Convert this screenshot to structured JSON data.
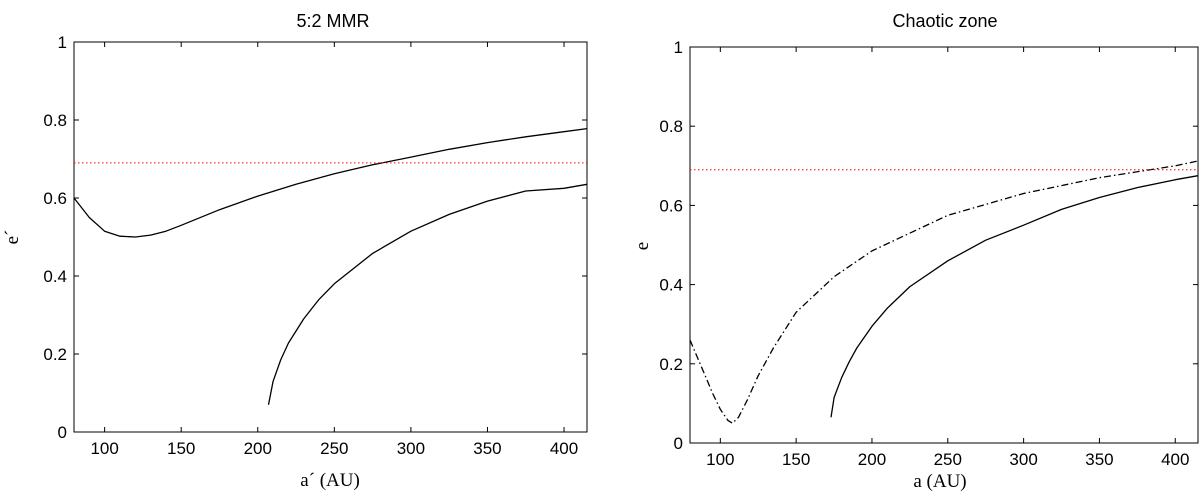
{
  "chart_data": [
    {
      "type": "line",
      "title": "5:2 MMR",
      "xlabel": "a´ (AU)",
      "ylabel": "e´",
      "xlim": [
        80,
        415
      ],
      "ylim": [
        0,
        1
      ],
      "xticks": [
        100,
        150,
        200,
        250,
        300,
        350,
        400
      ],
      "yticks": [
        0,
        0.2,
        0.4,
        0.6,
        0.8,
        1
      ],
      "xtick_labels": [
        "100",
        "150",
        "200",
        "250",
        "300",
        "350",
        "400"
      ],
      "ytick_labels": [
        "0",
        "0.2",
        "0.4",
        "0.6",
        "0.8",
        "1"
      ],
      "grid": false,
      "series": [
        {
          "style": "solid",
          "color": "#000000",
          "x": [
            80,
            90,
            100,
            110,
            120,
            130,
            140,
            150,
            175,
            200,
            225,
            250,
            275,
            300,
            325,
            350,
            375,
            400,
            415
          ],
          "y": [
            0.6,
            0.55,
            0.515,
            0.502,
            0.5,
            0.505,
            0.515,
            0.53,
            0.57,
            0.605,
            0.635,
            0.662,
            0.685,
            0.705,
            0.725,
            0.742,
            0.757,
            0.77,
            0.778
          ]
        },
        {
          "style": "solid",
          "color": "#000000",
          "x": [
            207,
            210,
            215,
            220,
            230,
            240,
            250,
            275,
            300,
            325,
            350,
            375,
            400,
            415
          ],
          "y": [
            0.07,
            0.13,
            0.185,
            0.228,
            0.29,
            0.34,
            0.38,
            0.458,
            0.515,
            0.558,
            0.592,
            0.618,
            0.625,
            0.635
          ]
        },
        {
          "style": "dotted",
          "color": "#ff0000",
          "x": [
            80,
            415
          ],
          "y": [
            0.69,
            0.69
          ]
        }
      ]
    },
    {
      "type": "line",
      "title": "Chaotic zone",
      "xlabel": "a (AU)",
      "ylabel": "e",
      "xlim": [
        80,
        415
      ],
      "ylim": [
        0,
        1
      ],
      "xticks": [
        100,
        150,
        200,
        250,
        300,
        350,
        400
      ],
      "yticks": [
        0,
        0.2,
        0.4,
        0.6,
        0.8,
        1
      ],
      "xtick_labels": [
        "100",
        "150",
        "200",
        "250",
        "300",
        "350",
        "400"
      ],
      "ytick_labels": [
        "0",
        "0.2",
        "0.4",
        "0.6",
        "0.8",
        "1"
      ],
      "grid": false,
      "series": [
        {
          "style": "dashdot",
          "color": "#000000",
          "x": [
            80,
            85,
            90,
            95,
            100,
            105,
            108,
            112,
            118,
            125,
            135,
            150,
            175,
            200,
            250,
            300,
            350,
            400,
            415
          ],
          "y": [
            0.26,
            0.215,
            0.17,
            0.125,
            0.085,
            0.057,
            0.05,
            0.065,
            0.11,
            0.17,
            0.24,
            0.33,
            0.42,
            0.485,
            0.575,
            0.63,
            0.67,
            0.7,
            0.712
          ]
        },
        {
          "style": "solid",
          "color": "#000000",
          "x": [
            173,
            175,
            180,
            185,
            190,
            200,
            210,
            225,
            250,
            275,
            300,
            325,
            350,
            375,
            400,
            415
          ],
          "y": [
            0.065,
            0.115,
            0.165,
            0.205,
            0.24,
            0.295,
            0.34,
            0.395,
            0.46,
            0.512,
            0.55,
            0.59,
            0.62,
            0.645,
            0.665,
            0.675
          ]
        },
        {
          "style": "dotted",
          "color": "#ff0000",
          "x": [
            80,
            415
          ],
          "y": [
            0.69,
            0.69
          ]
        }
      ]
    }
  ]
}
